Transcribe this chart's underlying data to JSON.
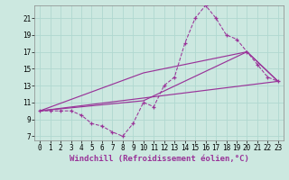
{
  "background_color": "#cce8e0",
  "grid_color": "#aaddcc",
  "line_color": "#993399",
  "xlabel": "Windchill (Refroidissement éolien,°C)",
  "xlim": [
    -0.5,
    23.5
  ],
  "ylim": [
    6.5,
    22.5
  ],
  "xticks": [
    0,
    1,
    2,
    3,
    4,
    5,
    6,
    7,
    8,
    9,
    10,
    11,
    12,
    13,
    14,
    15,
    16,
    17,
    18,
    19,
    20,
    21,
    22,
    23
  ],
  "yticks": [
    7,
    9,
    11,
    13,
    15,
    17,
    19,
    21
  ],
  "main_x": [
    0,
    1,
    2,
    3,
    4,
    5,
    6,
    7,
    8,
    9,
    10,
    11,
    12,
    13,
    14,
    15,
    16,
    17,
    18,
    19,
    20,
    21,
    22,
    23
  ],
  "main_y": [
    10,
    10,
    10,
    10,
    9.5,
    8.5,
    8.2,
    7.5,
    7.0,
    8.5,
    11,
    10.5,
    13,
    14,
    18,
    21,
    22.5,
    21,
    19,
    18.5,
    17,
    15.5,
    14,
    13.5
  ],
  "line1_x": [
    0,
    23
  ],
  "line1_y": [
    10,
    13.5
  ],
  "line2_x": [
    0,
    10,
    20,
    23
  ],
  "line2_y": [
    10,
    14.5,
    17,
    13.5
  ],
  "line3_x": [
    0,
    10,
    20,
    23
  ],
  "line3_y": [
    10,
    11.2,
    17,
    13.5
  ],
  "xlabel_fontsize": 6.5,
  "tick_fontsize": 5.5
}
